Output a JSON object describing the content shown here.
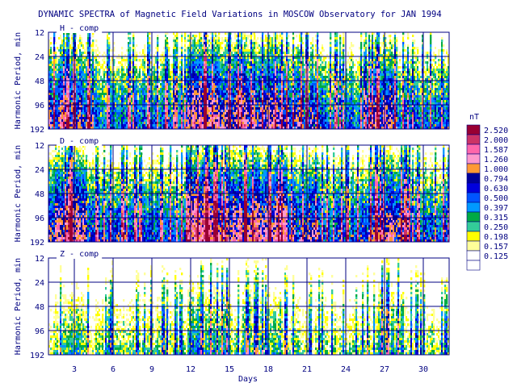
{
  "chart_data": {
    "type": "heatmap",
    "title": "DYNAMIC SPECTRA of Magnetic Field Variations in MOSCOW Observatory for JAN 1994",
    "xlabel": "Days",
    "ylabel": "Harmonic Period, min",
    "xlim": [
      1,
      32
    ],
    "x_ticks": [
      3,
      6,
      9,
      12,
      15,
      18,
      21,
      24,
      27,
      30
    ],
    "y_scale": "log",
    "y_ticks": [
      12,
      24,
      48,
      96,
      192
    ],
    "grid": true,
    "panels": [
      {
        "name": "H - comp",
        "typical_level": 0.55,
        "active_periods": [
          [
            1,
            4.5,
            0.9
          ],
          [
            11.8,
            13.5,
            1.4
          ],
          [
            13.5,
            19,
            1.1
          ],
          [
            19,
            22,
            0.8
          ],
          [
            25.8,
            28,
            1.0
          ]
        ]
      },
      {
        "name": "D - comp",
        "typical_level": 0.6,
        "active_periods": [
          [
            1,
            4,
            1.1
          ],
          [
            11.8,
            14,
            1.6
          ],
          [
            14,
            19.5,
            1.3
          ],
          [
            19.5,
            22,
            0.9
          ],
          [
            25.8,
            29,
            1.1
          ]
        ]
      },
      {
        "name": "Z - comp",
        "typical_level": 0.22,
        "active_periods": [
          [
            2,
            4,
            0.3
          ],
          [
            11.8,
            15,
            0.4
          ],
          [
            16,
            19,
            0.35
          ],
          [
            26.5,
            28.5,
            0.35
          ]
        ]
      }
    ],
    "legend": {
      "unit": "nT",
      "placement": "right",
      "levels": [
        {
          "label": "2.520",
          "color": "#990033"
        },
        {
          "label": "2.000",
          "color": "#cc3366"
        },
        {
          "label": "1.587",
          "color": "#ff66aa"
        },
        {
          "label": "1.260",
          "color": "#ff99cc"
        },
        {
          "label": "1.000",
          "color": "#ff9933"
        },
        {
          "label": "0.794",
          "color": "#000099"
        },
        {
          "label": "0.630",
          "color": "#0000dd"
        },
        {
          "label": "0.500",
          "color": "#0055ff"
        },
        {
          "label": "0.397",
          "color": "#0099ff"
        },
        {
          "label": "0.315",
          "color": "#00aa44"
        },
        {
          "label": "0.250",
          "color": "#33cc99"
        },
        {
          "label": "0.198",
          "color": "#ffff00"
        },
        {
          "label": "0.157",
          "color": "#ffff99"
        },
        {
          "label": "0.125",
          "color": "#ffffff"
        }
      ]
    }
  }
}
